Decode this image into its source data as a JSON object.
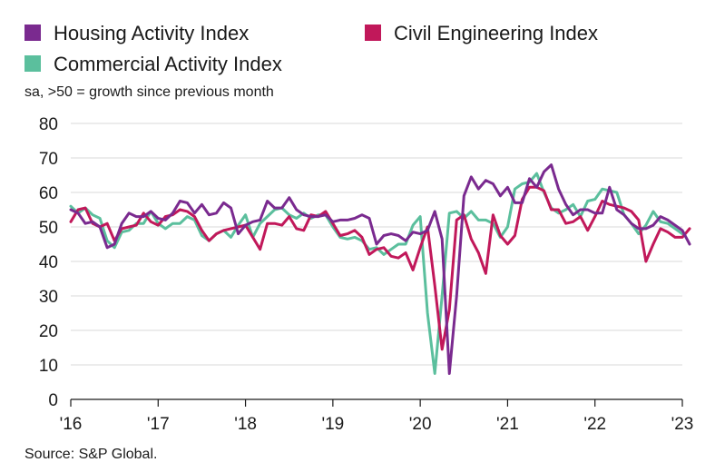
{
  "chart_data": {
    "type": "line",
    "title": "",
    "subtitle": "sa, >50 = growth since previous month",
    "source": "Source: S&P Global.",
    "xlabel": "",
    "ylabel": "",
    "ylim": [
      0,
      80
    ],
    "yticks": [
      0,
      10,
      20,
      30,
      40,
      50,
      60,
      70,
      80
    ],
    "xticks": [
      {
        "label": "'16",
        "value": 0
      },
      {
        "label": "'17",
        "value": 12
      },
      {
        "label": "'18",
        "value": 24
      },
      {
        "label": "'19",
        "value": 36
      },
      {
        "label": "'20",
        "value": 48
      },
      {
        "label": "'21",
        "value": 60
      },
      {
        "label": "'22",
        "value": 72
      },
      {
        "label": "'23",
        "value": 84
      }
    ],
    "x_domain": [
      0,
      84
    ],
    "grid": "horizontal",
    "legend_position": "top-left",
    "series": [
      {
        "name": "Commercial Activity Index",
        "color": "#5bbf9d",
        "values": [
          56,
          54,
          55.5,
          53.5,
          52.5,
          46,
          44,
          48.5,
          49,
          51,
          51,
          54.5,
          51,
          49.5,
          51,
          51,
          53,
          52,
          47.5,
          46,
          48,
          49,
          47,
          50.5,
          53.5,
          47,
          51,
          53,
          55,
          55.5,
          53.5,
          52.5,
          54,
          52.5,
          53.5,
          53.5,
          50,
          47,
          46.5,
          47,
          46,
          43.5,
          44,
          42,
          43.5,
          45,
          45,
          50.5,
          53,
          25,
          7.5,
          30,
          54,
          54.5,
          52.5,
          54.5,
          52,
          52,
          51,
          47,
          50,
          61,
          62.5,
          63,
          65.5,
          60,
          55.5,
          54,
          55,
          56.5,
          53,
          57.5,
          58,
          61,
          60.5,
          60,
          53.5,
          51,
          48,
          50.5,
          54.5,
          51.5,
          51,
          49.5,
          48
        ]
      },
      {
        "name": "Civil Engineering Index",
        "color": "#c1185a",
        "values": [
          51.5,
          55,
          55.5,
          51,
          50,
          51,
          46,
          49.5,
          50,
          50.5,
          54,
          51.5,
          50.5,
          53,
          53.5,
          55,
          54.5,
          53,
          49,
          46,
          48,
          49,
          49.5,
          50,
          50.5,
          47,
          43.5,
          51,
          51,
          50.5,
          53,
          49.5,
          49,
          53.5,
          53,
          54.5,
          51,
          47.5,
          48,
          49,
          47,
          42,
          43.5,
          44,
          41.5,
          41,
          42.5,
          37.5,
          44,
          50,
          33,
          14.5,
          26,
          52,
          53.5,
          46.5,
          42.5,
          36.5,
          53.5,
          47.5,
          45,
          47.5,
          58,
          61.5,
          61.5,
          60.5,
          55,
          55,
          51,
          51.5,
          53,
          49,
          53,
          57.5,
          56.5,
          56,
          55.5,
          54.5,
          52,
          40,
          45,
          49.5,
          48.5,
          47,
          47,
          49.5
        ]
      },
      {
        "name": "Housing Activity Index",
        "color": "#7a2a8f",
        "values": [
          55,
          54,
          51,
          51.5,
          50,
          44,
          45,
          51,
          54,
          53,
          53,
          54.5,
          52.5,
          52,
          54,
          57.5,
          57,
          54,
          56.5,
          53.5,
          54,
          57,
          55.5,
          48,
          50.5,
          51.5,
          52,
          57.5,
          55.5,
          55.5,
          58.5,
          55,
          53.5,
          53,
          53,
          53.5,
          51.5,
          52,
          52,
          52.5,
          53.5,
          52.5,
          45,
          47.5,
          48,
          47.5,
          46,
          48.5,
          48,
          49,
          54.5,
          46.5,
          7.5,
          30,
          59,
          64.5,
          61,
          63.5,
          62.5,
          59,
          61.5,
          57,
          57,
          64,
          61.5,
          66,
          68,
          61,
          56.5,
          53.5,
          55,
          55,
          54,
          54,
          61.5,
          55,
          53.5,
          51,
          49.5,
          49.5,
          50.5,
          53,
          52,
          50.5,
          49,
          45
        ]
      }
    ]
  }
}
